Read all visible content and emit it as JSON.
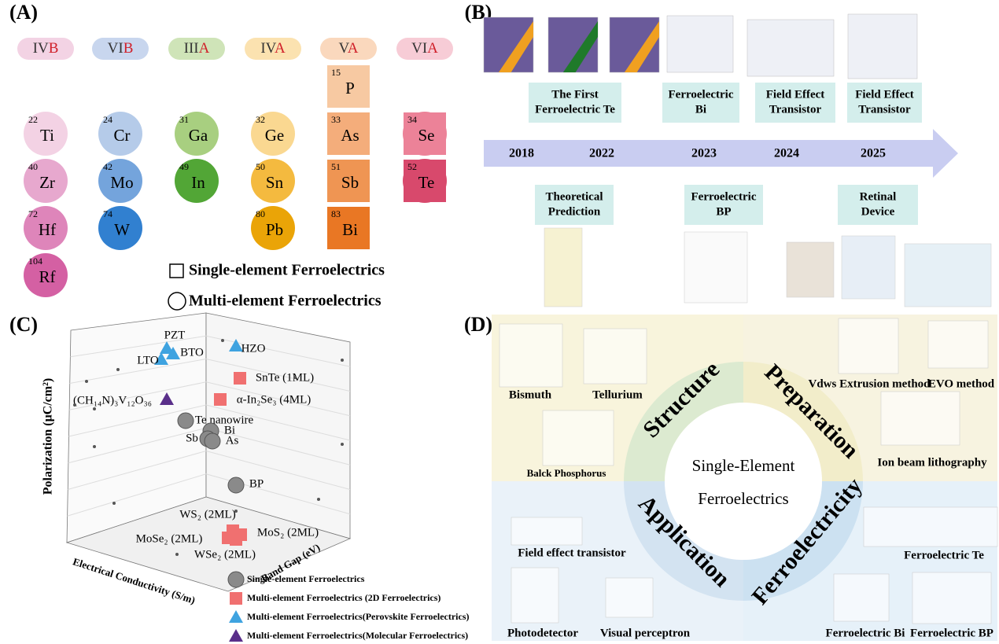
{
  "panel_a": {
    "label": "(A)",
    "groups": [
      {
        "roman": "IV",
        "letter": "B",
        "header_color": "#f3d3e4",
        "elements": [
          {
            "number": 22,
            "symbol": "Ti",
            "color": "#f3d2e4",
            "shape": "circle"
          },
          {
            "number": 40,
            "symbol": "Zr",
            "color": "#e7a8ce",
            "shape": "circle"
          },
          {
            "number": 72,
            "symbol": "Hf",
            "color": "#de85ba",
            "shape": "circle"
          },
          {
            "number": 104,
            "symbol": "Rf",
            "color": "#d460a3",
            "shape": "circle"
          }
        ]
      },
      {
        "roman": "VI",
        "letter": "B",
        "header_color": "#c8d6ee",
        "elements": [
          {
            "number": 24,
            "symbol": "Cr",
            "color": "#b5cbe9",
            "shape": "circle"
          },
          {
            "number": 42,
            "symbol": "Mo",
            "color": "#74a4dc",
            "shape": "circle"
          },
          {
            "number": 74,
            "symbol": "W",
            "color": "#3180d0",
            "shape": "circle"
          }
        ]
      },
      {
        "roman": "III",
        "letter": "A",
        "header_color": "#cfe4b8",
        "elements": [
          {
            "number": 31,
            "symbol": "Ga",
            "color": "#a8cf80",
            "shape": "circle"
          },
          {
            "number": 49,
            "symbol": "In",
            "color": "#52a636",
            "shape": "circle"
          }
        ]
      },
      {
        "roman": "IV",
        "letter": "A",
        "header_color": "#fbe2b0",
        "elements": [
          {
            "number": 32,
            "symbol": "Ge",
            "color": "#fad891",
            "shape": "circle"
          },
          {
            "number": 50,
            "symbol": "Sn",
            "color": "#f4ba3f",
            "shape": "circle"
          },
          {
            "number": 80,
            "symbol": "Pb",
            "color": "#eaa407",
            "shape": "circle"
          }
        ]
      },
      {
        "roman": "V",
        "letter": "A",
        "header_color": "#fad8bd",
        "elements": [
          {
            "number": 15,
            "symbol": "P",
            "color": "#f7c9a2",
            "shape": "square"
          },
          {
            "number": 33,
            "symbol": "As",
            "color": "#f4ad7b",
            "shape": "square"
          },
          {
            "number": 51,
            "symbol": "Sb",
            "color": "#ef9553",
            "shape": "square"
          },
          {
            "number": 83,
            "symbol": "Bi",
            "color": "#e97724",
            "shape": "square"
          }
        ]
      },
      {
        "roman": "VI",
        "letter": "A",
        "header_color": "#f7ccd6",
        "elements": [
          {
            "number": 34,
            "symbol": "Se",
            "color": "#ec8298",
            "shape": "both"
          },
          {
            "number": 52,
            "symbol": "Te",
            "color": "#d8496c",
            "shape": "both"
          }
        ]
      }
    ],
    "legend": [
      "Single-element Ferroelectrics",
      "Multi-element Ferroelectrics"
    ]
  },
  "panel_b": {
    "label": "(B)",
    "years": [
      "2018",
      "2022",
      "2023",
      "2024",
      "2025"
    ],
    "top_events": [
      {
        "lines": [
          "The First",
          "Ferroelectric Te"
        ]
      },
      {
        "lines": [
          "Ferroelectric",
          "Bi"
        ]
      },
      {
        "lines": [
          "Field Effect",
          "Transistor"
        ]
      },
      {
        "lines": [
          "Field Effect",
          "Transistor"
        ]
      }
    ],
    "bottom_events": [
      {
        "lines": [
          "Theoretical",
          "Prediction"
        ]
      },
      {
        "lines": [
          "Ferroelectric",
          "BP"
        ]
      },
      {
        "lines": [
          "Retinal",
          "Device"
        ]
      }
    ]
  },
  "panel_c": {
    "label": "(C)",
    "y_axis_label": "Polarization (μC/cm²)",
    "x_axis_label": "Electrical Conductivity (S/m)",
    "z_axis_label": "Band Gap (eV)",
    "points": [
      {
        "text": "PZT",
        "kind": "perovskite"
      },
      {
        "text": "LTO",
        "kind": "perovskite"
      },
      {
        "text": "BTO",
        "kind": "perovskite"
      },
      {
        "text": "HZO",
        "kind": "perovskite"
      },
      {
        "text": "SnTe (1ML)",
        "kind": "2d"
      },
      {
        "text": "α-In₂Se₃ (4ML)",
        "kind": "2d"
      },
      {
        "text": "(CH₁₄N)₃V₁₂O₃₆",
        "kind": "molecular"
      },
      {
        "text": "Te nanowire",
        "kind": "single"
      },
      {
        "text": "Bi",
        "kind": "single"
      },
      {
        "text": "Sb",
        "kind": "single"
      },
      {
        "text": "As",
        "kind": "single"
      },
      {
        "text": "BP",
        "kind": "single"
      },
      {
        "text": "WS₂ (2ML)",
        "kind": "2d"
      },
      {
        "text": "MoS₂ (2ML)",
        "kind": "2d"
      },
      {
        "text": "MoSe₂ (2ML)",
        "kind": "2d"
      },
      {
        "text": "WSe₂ (2ML)",
        "kind": "2d"
      }
    ],
    "legend": [
      {
        "text": "Single-element Ferroelectrics",
        "kind": "single"
      },
      {
        "text": "Multi-element Ferroelectrics (2D Ferroelectrics)",
        "kind": "2d"
      },
      {
        "text": "Multi-element Ferroelectrics(Perovskite Ferroelectrics)",
        "kind": "perovskite"
      },
      {
        "text": "Multi-element Ferroelectrics(Molecular Ferroelectrics)",
        "kind": "molecular"
      }
    ]
  },
  "panel_d": {
    "label": "(D)",
    "center": [
      "Single-Element",
      "Ferroelectrics"
    ],
    "quadrants": [
      "Structure",
      "Preparation",
      "Application",
      "Ferroelectricity"
    ],
    "items": [
      "Bismuth",
      "Tellurium",
      "Balck Phosphorus",
      "Vdws Extrusion method",
      "EVO method",
      "Ion beam lithography",
      "Field effect transistor",
      "Photodetector",
      "Visual perceptron",
      "Ferroelectric Te",
      "Ferroelectric Bi",
      "Ferroelectric BP"
    ]
  }
}
